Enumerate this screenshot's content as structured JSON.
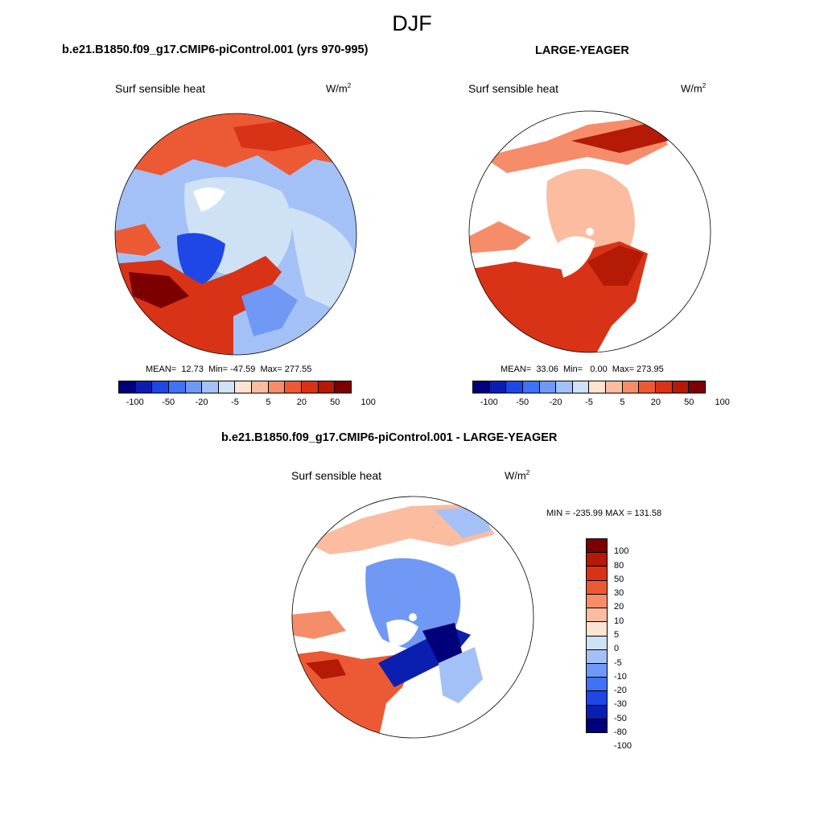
{
  "figure": {
    "season": "DJF",
    "colors": {
      "land": "#ffffff",
      "coast": "#000000"
    }
  },
  "panels": [
    {
      "id": "ctrl",
      "title": "b.e21.B1850.f09_g17.CMIP6-piControl.001 (yrs 970-995)",
      "variable": "Surf sensible heat",
      "units": "W/m",
      "units_sup": "2",
      "stats": "MEAN=  12.73  Min= -47.59  Max= 277.55"
    },
    {
      "id": "obs",
      "title": "LARGE-YEAGER",
      "variable": "Surf sensible heat",
      "units": "W/m",
      "units_sup": "2",
      "stats": "MEAN=  33.06  Min=   0.00  Max= 273.95"
    },
    {
      "id": "diff",
      "title": "b.e21.B1850.f09_g17.CMIP6-piControl.001 - LARGE-YEAGER",
      "variable": "Surf sensible heat",
      "units": "W/m",
      "units_sup": "2",
      "stats": "MIN = -235.99 MAX = 131.58"
    }
  ],
  "colorbar_abs": {
    "colors": [
      "#00007a",
      "#0a1fb0",
      "#1e47e6",
      "#3f72f5",
      "#7098f5",
      "#a4c1f7",
      "#cfe2f5",
      "#fde3d2",
      "#fbbca0",
      "#f68d6a",
      "#ec5a35",
      "#d83317",
      "#b41a05",
      "#7c0000"
    ],
    "labels": [
      "-100",
      "-50",
      "-20",
      "-5",
      "5",
      "20",
      "50",
      "100"
    ]
  },
  "colorbar_diff": {
    "colors": [
      "#7c0000",
      "#b41a05",
      "#d83317",
      "#ec5a35",
      "#f68d6a",
      "#fbbca0",
      "#fde3d2",
      "#cfe2f5",
      "#a4c1f7",
      "#7098f5",
      "#3f72f5",
      "#1e47e6",
      "#0a1fb0",
      "#00007a"
    ],
    "labels": [
      "100",
      "80",
      "50",
      "30",
      "20",
      "10",
      "5",
      "0",
      "-5",
      "-10",
      "-20",
      "-30",
      "-50",
      "-80",
      "-100"
    ]
  }
}
